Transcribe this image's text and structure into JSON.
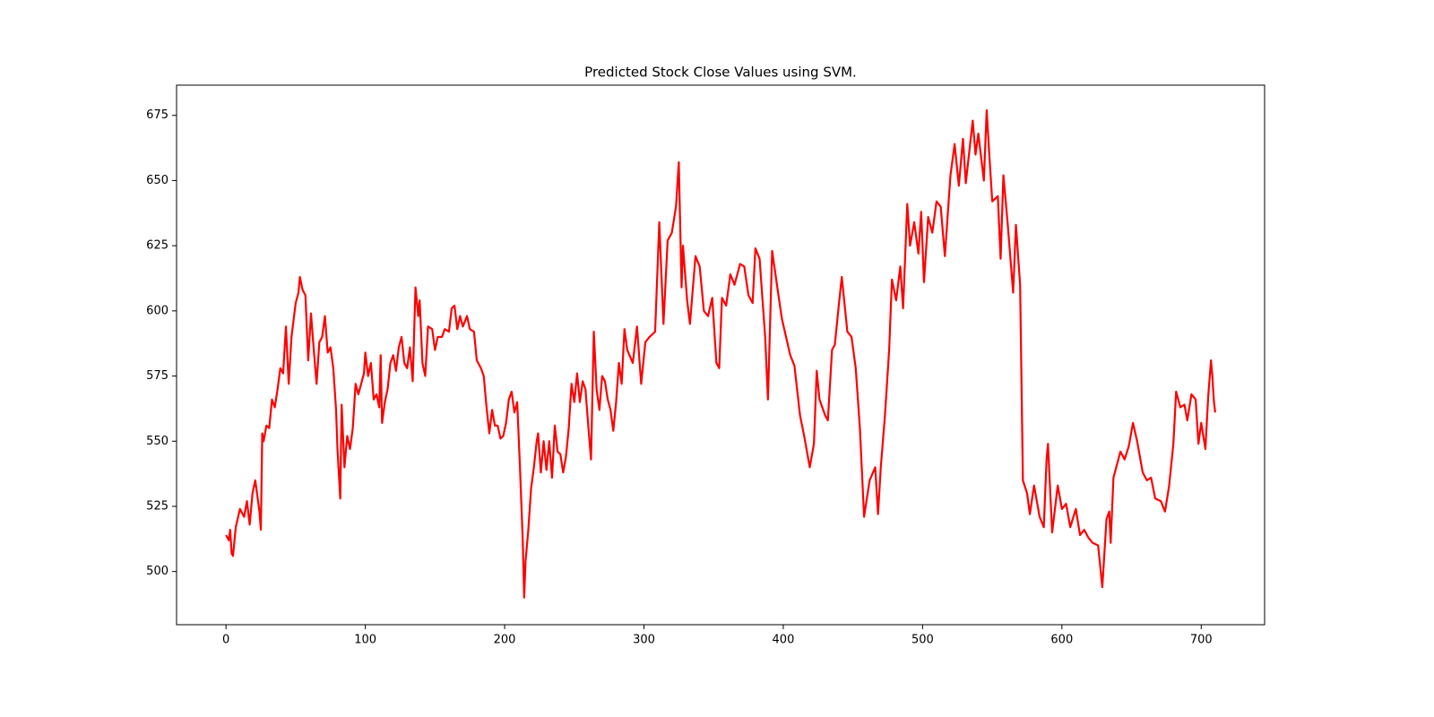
{
  "chart_data": {
    "type": "line",
    "title": "Predicted Stock Close Values using SVM.",
    "color": "#ff0000",
    "xlim": [
      -35.5,
      745.5
    ],
    "xticks": [
      0,
      100,
      200,
      300,
      400,
      500,
      600,
      700
    ],
    "ylim": [
      479.6,
      686.6
    ],
    "yticks": [
      500,
      525,
      550,
      575,
      600,
      625,
      650,
      675
    ],
    "x": [
      0,
      2,
      3,
      4,
      5,
      7,
      10,
      13,
      15,
      17,
      19,
      21,
      23,
      24,
      25,
      26,
      27,
      29,
      31,
      33,
      35,
      37,
      39,
      41,
      43,
      45,
      47,
      50,
      52,
      53,
      55,
      57,
      59,
      61,
      63,
      65,
      67,
      69,
      71,
      73,
      75,
      77,
      79,
      80,
      82,
      83,
      85,
      87,
      89,
      91,
      93,
      95,
      97,
      99,
      100,
      102,
      104,
      106,
      108,
      110,
      111,
      112,
      114,
      116,
      118,
      120,
      122,
      124,
      126,
      128,
      130,
      132,
      134,
      136,
      138,
      139,
      141,
      143,
      145,
      148,
      150,
      152,
      155,
      157,
      160,
      162,
      164,
      166,
      168,
      170,
      173,
      175,
      178,
      180,
      183,
      185,
      187,
      189,
      191,
      193,
      195,
      197,
      199,
      201,
      203,
      205,
      207,
      209,
      211,
      213,
      214,
      215,
      217,
      219,
      221,
      223,
      224,
      226,
      228,
      230,
      232,
      234,
      236,
      238,
      240,
      242,
      244,
      246,
      248,
      250,
      252,
      254,
      256,
      258,
      260,
      262,
      264,
      266,
      268,
      270,
      272,
      274,
      276,
      278,
      280,
      282,
      284,
      286,
      288,
      292,
      295,
      298,
      301,
      304,
      308,
      311,
      314,
      317,
      320,
      323,
      325,
      327,
      328,
      331,
      333,
      337,
      340,
      343,
      346,
      349,
      352,
      354,
      356,
      359,
      362,
      365,
      369,
      372,
      375,
      378,
      380,
      383,
      387,
      389,
      392,
      396,
      399,
      402,
      405,
      408,
      412,
      415,
      419,
      422,
      424,
      426,
      430,
      432,
      435,
      437,
      440,
      442,
      446,
      449,
      452,
      455,
      458,
      462,
      466,
      468,
      470,
      473,
      476,
      478,
      481,
      484,
      486,
      489,
      491,
      494,
      497,
      499,
      501,
      504,
      507,
      510,
      513,
      516,
      520,
      523,
      526,
      529,
      531,
      536,
      538,
      540,
      544,
      546,
      548,
      550,
      554,
      556,
      558,
      561,
      565,
      567,
      570,
      572,
      575,
      577,
      580,
      584,
      587,
      589,
      590,
      593,
      597,
      600,
      603,
      606,
      610,
      613,
      616,
      619,
      622,
      626,
      629,
      632,
      634,
      635,
      637,
      642,
      645,
      648,
      651,
      654,
      658,
      661,
      664,
      667,
      671,
      674,
      677,
      680,
      682,
      685,
      688,
      690,
      693,
      696,
      698,
      700,
      703,
      705,
      707,
      708,
      709,
      710
    ],
    "values": [
      514,
      512,
      516,
      507,
      506,
      517,
      524,
      521,
      527,
      518,
      530,
      535,
      527,
      523,
      516,
      553,
      550,
      556,
      555,
      566,
      563,
      570,
      578,
      576,
      594,
      572,
      590,
      603,
      607,
      613,
      608,
      606,
      581,
      599,
      585,
      572,
      588,
      590,
      598,
      584,
      586,
      578,
      562,
      547,
      528,
      564,
      540,
      552,
      547,
      555,
      572,
      568,
      572,
      576,
      584,
      575,
      580,
      566,
      568,
      563,
      583,
      557,
      565,
      570,
      580,
      583,
      577,
      586,
      590,
      580,
      578,
      586,
      573,
      609,
      598,
      604,
      580,
      575,
      594,
      593,
      585,
      590,
      590,
      593,
      592,
      601,
      602,
      593,
      598,
      594,
      598,
      593,
      592,
      581,
      578,
      575,
      563,
      553,
      562,
      556,
      556,
      551,
      552,
      557,
      566,
      569,
      561,
      565,
      540,
      512,
      490,
      504,
      516,
      532,
      540,
      550,
      553,
      538,
      550,
      539,
      550,
      536,
      556,
      546,
      545,
      538,
      544,
      555,
      572,
      565,
      576,
      565,
      573,
      570,
      556,
      543,
      592,
      570,
      562,
      575,
      573,
      566,
      562,
      554,
      565,
      580,
      572,
      593,
      585,
      580,
      594,
      572,
      588,
      590,
      592,
      634,
      595,
      627,
      630,
      640,
      657,
      609,
      625,
      604,
      595,
      621,
      617,
      600,
      598,
      605,
      580,
      578,
      605,
      602,
      614,
      610,
      618,
      617,
      606,
      603,
      624,
      620,
      590,
      566,
      623,
      608,
      597,
      590,
      583,
      579,
      560,
      552,
      540,
      549,
      577,
      566,
      560,
      558,
      585,
      587,
      603,
      613,
      592,
      590,
      578,
      555,
      521,
      535,
      540,
      522,
      540,
      560,
      585,
      612,
      604,
      617,
      601,
      641,
      625,
      634,
      622,
      638,
      611,
      636,
      630,
      642,
      640,
      621,
      652,
      664,
      648,
      666,
      649,
      673,
      660,
      668,
      650,
      677,
      659,
      642,
      644,
      620,
      652,
      634,
      607,
      633,
      610,
      535,
      530,
      522,
      533,
      521,
      517,
      543,
      549,
      515,
      533,
      524,
      526,
      517,
      524,
      514,
      516,
      513,
      511,
      510,
      494,
      520,
      523,
      511,
      536,
      546,
      543,
      548,
      557,
      550,
      538,
      535,
      536,
      528,
      527,
      523,
      533,
      549,
      569,
      563,
      564,
      558,
      568,
      566,
      549,
      557,
      547,
      567,
      581,
      575,
      566,
      561
    ]
  }
}
